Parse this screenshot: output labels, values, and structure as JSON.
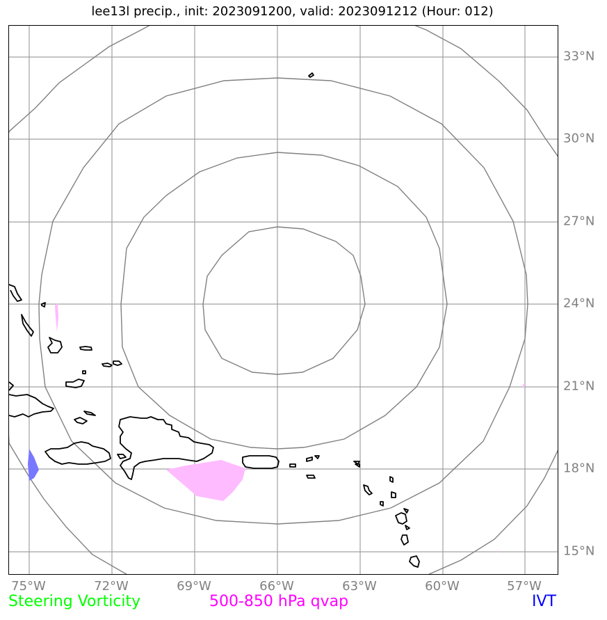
{
  "title": "lee13l precip., init: 2023091200, valid: 2023091212 (Hour: 012)",
  "map": {
    "lon_labels": [
      "75°W",
      "72°W",
      "69°W",
      "66°W",
      "63°W",
      "60°W",
      "57°W"
    ],
    "lat_labels": [
      "33°N",
      "30°N",
      "27°N",
      "24°N",
      "21°N",
      "18°N",
      "15°N"
    ],
    "grid_color": "#a0a0a0",
    "range_ring_color": "#808080",
    "coastline_color": "#000000"
  },
  "legend": {
    "steering": {
      "label": "Steering Vorticity",
      "color": "#00ff00"
    },
    "qvap": {
      "label": "500-850 hPa qvap",
      "color": "#ff00ff"
    },
    "ivt": {
      "label": "IVT",
      "color": "#0000ff"
    }
  },
  "overlays": {
    "qvap_fill_color": "#ffbbff",
    "ivt_fill_color": "#7777ff"
  }
}
